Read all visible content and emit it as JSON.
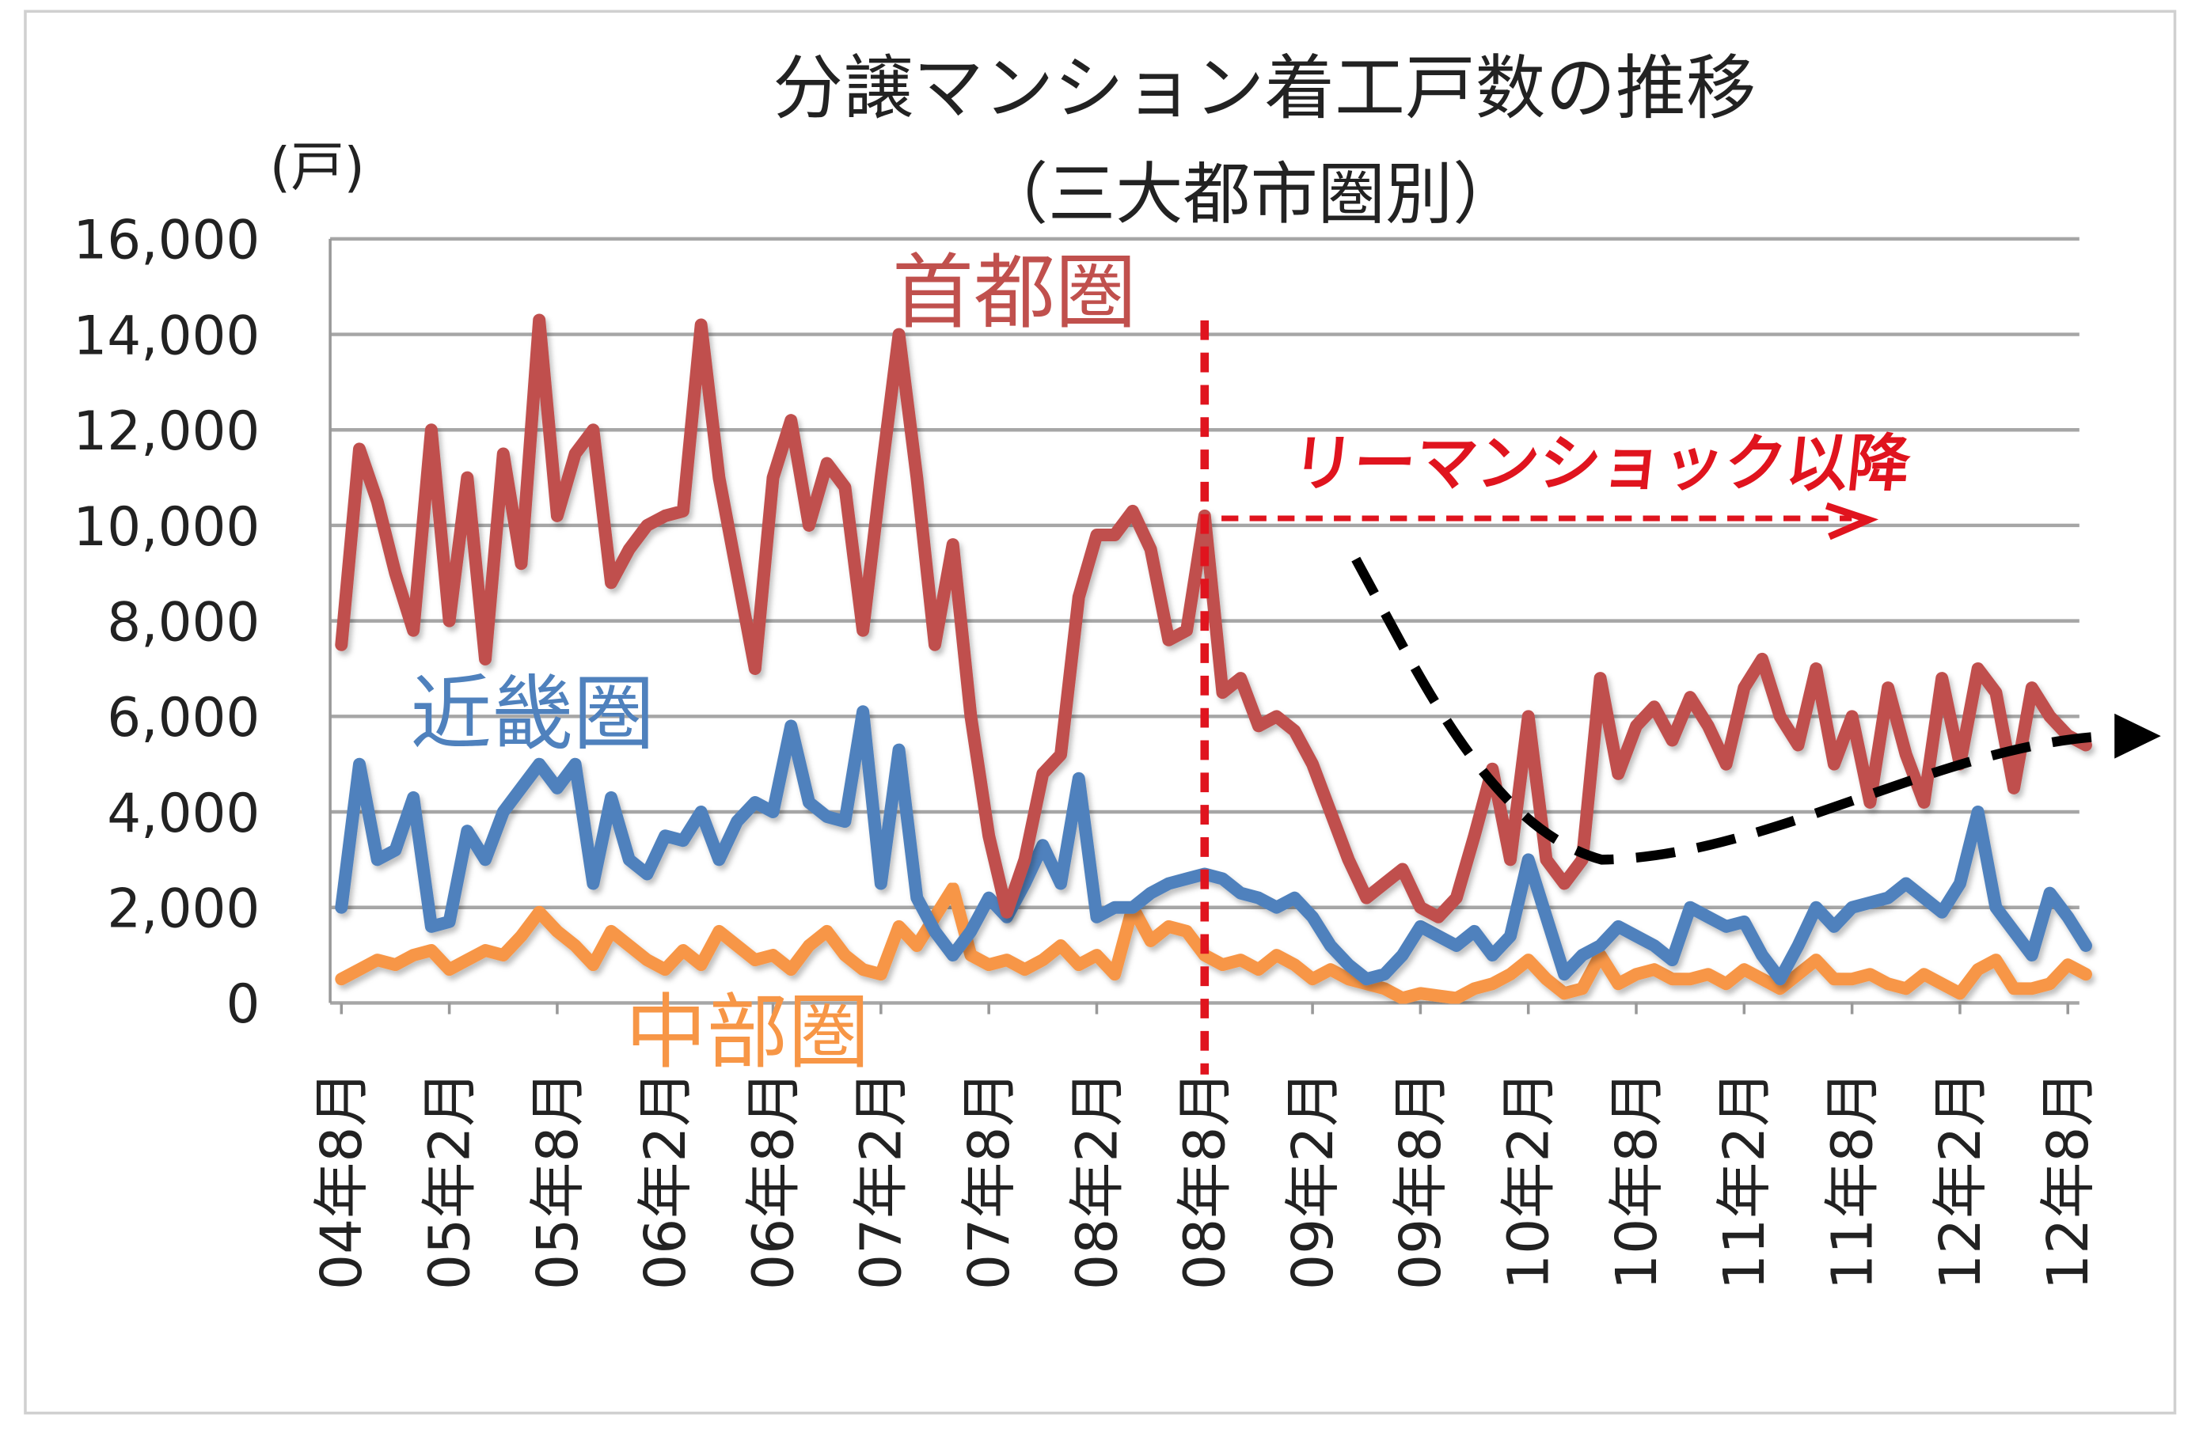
{
  "chart_data": {
    "type": "line",
    "title": "分譲マンション着工戸数の推移",
    "subtitle": "（三大都市圏別）",
    "ylabel": "(戸)",
    "ylim": [
      0,
      16000
    ],
    "yticks": [
      "0",
      "2,000",
      "4,000",
      "6,000",
      "8,000",
      "10,000",
      "12,000",
      "14,000",
      "16,000"
    ],
    "grid": true,
    "x_start": "04年8月",
    "x_tick_labels": [
      "04年8月",
      "05年2月",
      "05年8月",
      "06年2月",
      "06年8月",
      "07年2月",
      "07年8月",
      "08年2月",
      "08年8月",
      "09年2月",
      "09年8月",
      "10年2月",
      "10年8月",
      "11年2月",
      "11年8月",
      "12年2月",
      "12年8月"
    ],
    "series": [
      {
        "name": "首都圏",
        "color": "#c0504d",
        "values": [
          7500,
          11600,
          10500,
          9000,
          7800,
          12000,
          8000,
          11000,
          7200,
          11500,
          9200,
          14300,
          10200,
          11500,
          12000,
          8800,
          9500,
          10000,
          10200,
          10300,
          14200,
          11000,
          9000,
          7000,
          11000,
          12200,
          10000,
          11300,
          10800,
          7800,
          11000,
          14000,
          11000,
          7500,
          9600,
          6000,
          3500,
          1900,
          3000,
          4800,
          5200,
          8500,
          9800,
          9800,
          10300,
          9500,
          7600,
          7800,
          10200,
          6500,
          6800,
          5800,
          6000,
          5700,
          5000,
          4000,
          3000,
          2200,
          2500,
          2800,
          2000,
          1800,
          2200,
          3500,
          4900,
          3000,
          6000,
          3000,
          2500,
          3000,
          6800,
          4800,
          5800,
          6200,
          5500,
          6400,
          5800,
          5000,
          6600,
          7200,
          6000,
          5400,
          7000,
          5000,
          6000,
          4200,
          6600,
          5200,
          4200,
          6800,
          5000,
          7000,
          6500,
          4500,
          6600,
          6000,
          5600,
          5400
        ]
      },
      {
        "name": "近畿圏",
        "color": "#4f81bd",
        "values": [
          2000,
          5000,
          3000,
          3200,
          4300,
          1600,
          1700,
          3600,
          3000,
          4000,
          4500,
          5000,
          4500,
          5000,
          2500,
          4300,
          3000,
          2700,
          3500,
          3400,
          4000,
          3000,
          3800,
          4200,
          4000,
          5800,
          4200,
          3900,
          3800,
          6100,
          2500,
          5300,
          2200,
          1500,
          1000,
          1500,
          2200,
          1800,
          2500,
          3300,
          2500,
          4700,
          1800,
          2000,
          2000,
          2300,
          2500,
          2600,
          2700,
          2600,
          2300,
          2200,
          2000,
          2200,
          1800,
          1200,
          800,
          500,
          600,
          1000,
          1600,
          1400,
          1200,
          1500,
          1000,
          1400,
          3000,
          1800,
          600,
          1000,
          1200,
          1600,
          1400,
          1200,
          900,
          2000,
          1800,
          1600,
          1700,
          1000,
          500,
          1200,
          2000,
          1600,
          2000,
          2100,
          2200,
          2500,
          2200,
          1900,
          2500,
          4000,
          2000,
          1500,
          1000,
          2300,
          1800,
          1200
        ]
      },
      {
        "name": "中部圏",
        "color": "#f79646",
        "values": [
          500,
          700,
          900,
          800,
          1000,
          1100,
          700,
          900,
          1100,
          1000,
          1400,
          1900,
          1500,
          1200,
          800,
          1500,
          1200,
          900,
          700,
          1100,
          800,
          1500,
          1200,
          900,
          1000,
          700,
          1200,
          1500,
          1000,
          700,
          600,
          1600,
          1200,
          1800,
          2400,
          1000,
          800,
          900,
          700,
          900,
          1200,
          800,
          1000,
          600,
          2000,
          1300,
          1600,
          1500,
          1000,
          800,
          900,
          700,
          1000,
          800,
          500,
          700,
          500,
          400,
          300,
          100,
          200,
          150,
          100,
          300,
          400,
          600,
          900,
          500,
          200,
          300,
          1000,
          400,
          600,
          700,
          500,
          500,
          600,
          400,
          700,
          500,
          300,
          600,
          900,
          500,
          500,
          600,
          400,
          300,
          600,
          400,
          200,
          700,
          900,
          300,
          300,
          400,
          800,
          600
        ]
      }
    ],
    "annotations": {
      "event_label": "リーマンショック以降",
      "event_at": "08年8月",
      "event_color": "#e0141e",
      "trend_arrow_color": "#000000"
    }
  }
}
